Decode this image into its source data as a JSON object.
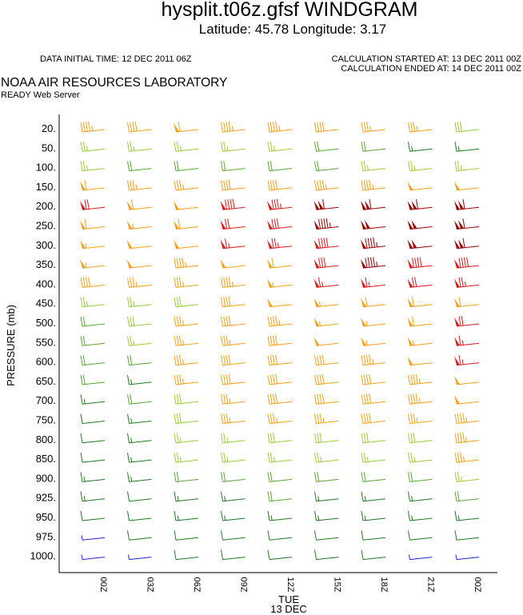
{
  "header": {
    "title": "hysplit.t06z.gfsf WINDGRAM",
    "location": "Latitude: 45.78 Longitude:   3.17",
    "data_initial_time": "DATA INITIAL TIME: 12 DEC 2011 06Z",
    "calc_started": "CALCULATION STARTED AT: 13 DEC 2011 00Z",
    "calc_ended": "CALCULATION ENDED AT: 14 DEC 2011 00Z",
    "lab_name": "NOAA AIR RESOURCES LABORATORY",
    "server_name": "READY Web Server"
  },
  "colors": {
    "purple": "#2222dd",
    "darkgreen": "#1e7a1e",
    "green": "#58a62e",
    "lightgreen": "#9acd32",
    "orange": "#f5a014",
    "red": "#e01818",
    "darkred": "#9a0000"
  },
  "chart_data": {
    "type": "windgram",
    "ylabel": "PRESSURE (mb)",
    "xlabel_day": "TUE",
    "xlabel_date": "13 DEC",
    "pressure_levels": [
      "20.",
      "50.",
      "100.",
      "150.",
      "200.",
      "250.",
      "300.",
      "350.",
      "400.",
      "450.",
      "500.",
      "550.",
      "600.",
      "650.",
      "700.",
      "750.",
      "800.",
      "850.",
      "900.",
      "925.",
      "950.",
      "975.",
      "1000."
    ],
    "time_labels": [
      "00Z",
      "03Z",
      "06Z",
      "09Z",
      "12Z",
      "15Z",
      "18Z",
      "21Z",
      "00Z"
    ],
    "wind_speed_kt": [
      [
        45,
        40,
        60,
        45,
        45,
        40,
        35,
        35,
        30
      ],
      [
        25,
        25,
        25,
        25,
        25,
        20,
        20,
        15,
        15
      ],
      [
        25,
        20,
        20,
        20,
        20,
        20,
        25,
        25,
        25
      ],
      [
        60,
        35,
        35,
        40,
        40,
        45,
        45,
        50,
        50
      ],
      [
        70,
        60,
        50,
        90,
        85,
        110,
        110,
        110,
        110
      ],
      [
        60,
        55,
        60,
        70,
        80,
        95,
        100,
        100,
        110
      ],
      [
        55,
        50,
        50,
        65,
        75,
        90,
        95,
        100,
        110
      ],
      [
        55,
        50,
        45,
        50,
        60,
        80,
        95,
        90,
        90
      ],
      [
        40,
        35,
        35,
        45,
        55,
        65,
        65,
        70,
        75
      ],
      [
        25,
        25,
        30,
        40,
        50,
        55,
        60,
        60,
        60
      ],
      [
        20,
        30,
        35,
        40,
        45,
        55,
        55,
        60,
        70
      ],
      [
        20,
        25,
        35,
        35,
        40,
        50,
        55,
        55,
        65
      ],
      [
        20,
        20,
        35,
        40,
        40,
        40,
        45,
        50,
        65
      ],
      [
        20,
        15,
        35,
        40,
        40,
        40,
        40,
        45,
        50
      ],
      [
        15,
        20,
        30,
        35,
        40,
        40,
        40,
        45,
        50
      ],
      [
        10,
        15,
        30,
        35,
        35,
        35,
        40,
        35,
        45
      ],
      [
        10,
        15,
        25,
        25,
        30,
        30,
        30,
        30,
        45
      ],
      [
        10,
        15,
        25,
        25,
        25,
        25,
        25,
        25,
        35
      ],
      [
        15,
        15,
        20,
        20,
        20,
        20,
        20,
        20,
        25
      ],
      [
        15,
        10,
        15,
        15,
        20,
        15,
        15,
        15,
        20
      ],
      [
        10,
        10,
        15,
        15,
        15,
        15,
        15,
        15,
        15
      ],
      [
        5,
        10,
        10,
        10,
        10,
        10,
        10,
        10,
        10
      ],
      [
        5,
        5,
        10,
        10,
        10,
        10,
        10,
        5,
        5
      ]
    ],
    "grid": false
  }
}
